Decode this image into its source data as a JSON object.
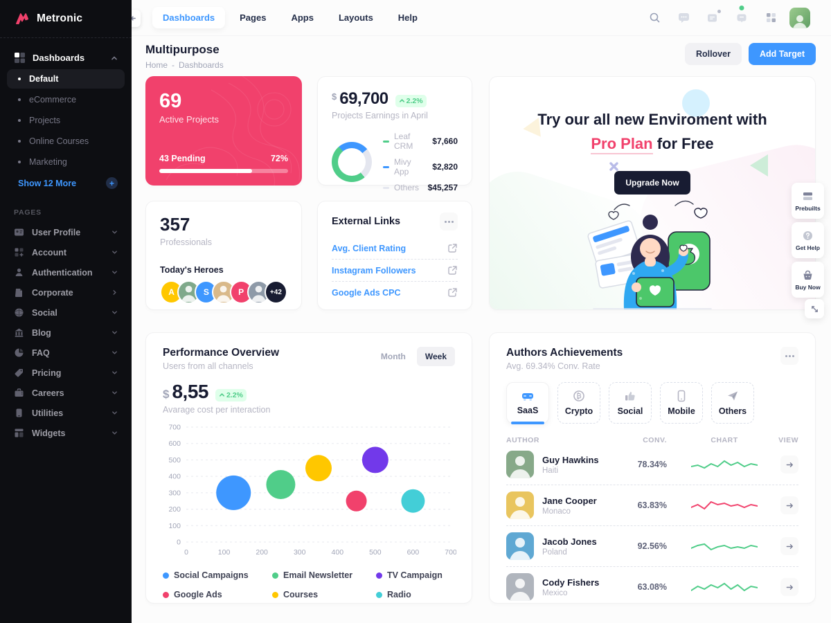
{
  "brand": {
    "name": "Metronic"
  },
  "colors": {
    "primary": "#3E97FF",
    "danger": "#F1416C",
    "success": "#50CD89",
    "warning": "#FFC700",
    "purple": "#7239EA",
    "teal": "#43CED7",
    "dark": "#181C32"
  },
  "topnav": {
    "tabs": [
      {
        "label": "Dashboards"
      },
      {
        "label": "Pages"
      },
      {
        "label": "Apps"
      },
      {
        "label": "Layouts"
      },
      {
        "label": "Help"
      }
    ]
  },
  "sidebar": {
    "dashboards_label": "Dashboards",
    "dashboard_items": [
      {
        "label": "Default"
      },
      {
        "label": "eCommerce"
      },
      {
        "label": "Projects"
      },
      {
        "label": "Online Courses"
      },
      {
        "label": "Marketing"
      }
    ],
    "show_more": "Show 12 More",
    "pages_heading": "PAGES",
    "pages": [
      {
        "label": "User Profile"
      },
      {
        "label": "Account"
      },
      {
        "label": "Authentication"
      },
      {
        "label": "Corporate"
      },
      {
        "label": "Social"
      },
      {
        "label": "Blog"
      },
      {
        "label": "FAQ"
      },
      {
        "label": "Pricing"
      },
      {
        "label": "Careers"
      },
      {
        "label": "Utilities"
      },
      {
        "label": "Widgets"
      }
    ]
  },
  "toolbar": {
    "title": "Multipurpose",
    "breadcrumb_home": "Home",
    "breadcrumb_sep": "-",
    "breadcrumb_current": "Dashboards",
    "rollover_label": "Rollover",
    "add_target_label": "Add Target"
  },
  "cards": {
    "active_projects": {
      "value": "69",
      "label": "Active Projects",
      "pending": "43 Pending",
      "percent_label": "72%",
      "progress": 72
    },
    "earnings": {
      "currency": "$",
      "value": "69,700",
      "delta": "2.2%",
      "subtitle": "Projects Earnings in April",
      "rows": [
        {
          "label": "Leaf CRM",
          "value": "$7,660",
          "color": "#50CD89"
        },
        {
          "label": "Mivy App",
          "value": "$2,820",
          "color": "#3E97FF"
        },
        {
          "label": "Others",
          "value": "$45,257",
          "color": "#E4E6EF"
        }
      ]
    },
    "banner": {
      "title_line1": "Try our all new Enviroment with",
      "highlight": "Pro Plan",
      "title_tail": " for Free",
      "button": "Upgrade Now"
    },
    "professionals": {
      "value": "357",
      "label": "Professionals",
      "heroes_label": "Today's Heroes",
      "avatars": [
        {
          "initial": "A",
          "bg": "#FFC700"
        },
        {
          "initial": "",
          "bg": "#7FA98B"
        },
        {
          "initial": "S",
          "bg": "#3E97FF"
        },
        {
          "initial": "",
          "bg": "#D9B98A"
        },
        {
          "initial": "P",
          "bg": "#F1416C"
        },
        {
          "initial": "",
          "bg": "#8E9AA8"
        },
        {
          "initial": "+42",
          "bg": "#181C32"
        }
      ]
    },
    "external_links": {
      "title": "External Links",
      "links": [
        {
          "label": "Avg. Client Rating"
        },
        {
          "label": "Instagram Followers"
        },
        {
          "label": "Google Ads CPC"
        }
      ]
    },
    "performance": {
      "title": "Performance Overview",
      "subtitle": "Users from all channels",
      "toggle": [
        {
          "label": "Month"
        },
        {
          "label": "Week",
          "active": true
        }
      ],
      "currency": "$",
      "value": "8,55",
      "delta": "2.2%",
      "caption": "Avarage cost per interaction"
    },
    "authors": {
      "title": "Authors Achievements",
      "subtitle": "Avg. 69.34% Conv. Rate",
      "tabs": [
        {
          "label": "SaaS",
          "active": true
        },
        {
          "label": "Crypto"
        },
        {
          "label": "Social"
        },
        {
          "label": "Mobile"
        },
        {
          "label": "Others"
        }
      ],
      "columns": [
        "AUTHOR",
        "CONV.",
        "CHART",
        "VIEW"
      ],
      "rows": [
        {
          "name": "Guy Hawkins",
          "country": "Haiti",
          "conv": "78.34%",
          "avatar_bg": "#87A989",
          "spark_color": "#50CD89",
          "spark": [
            4,
            5,
            3,
            6,
            4,
            8,
            5,
            7,
            4,
            6,
            5
          ]
        },
        {
          "name": "Jane Cooper",
          "country": "Monaco",
          "conv": "63.83%",
          "avatar_bg": "#E9C55E",
          "spark_color": "#F1416C",
          "spark": [
            4,
            6,
            3,
            8,
            6,
            7,
            5,
            6,
            4,
            6,
            5
          ]
        },
        {
          "name": "Jacob Jones",
          "country": "Poland",
          "conv": "92.56%",
          "avatar_bg": "#5FA8D3",
          "spark_color": "#50CD89",
          "spark": [
            4,
            6,
            7,
            3,
            5,
            6,
            4,
            5,
            4,
            6,
            5
          ]
        },
        {
          "name": "Cody Fishers",
          "country": "Mexico",
          "conv": "63.08%",
          "avatar_bg": "#B0B5BD",
          "spark_color": "#50CD89",
          "spark": [
            3,
            6,
            4,
            7,
            5,
            8,
            4,
            7,
            3,
            6,
            5
          ]
        }
      ]
    }
  },
  "side_actions": {
    "prebuilts": "Prebuilts",
    "get_help": "Get Help",
    "buy_now": "Buy Now"
  },
  "chart_data": {
    "type": "scatter",
    "title": "Performance Overview",
    "subtitle": "Users from all channels",
    "xlabel": "",
    "ylabel": "",
    "xlim": [
      0,
      700
    ],
    "ylim": [
      0,
      700
    ],
    "xticks": [
      0,
      100,
      200,
      300,
      400,
      500,
      600,
      700
    ],
    "yticks": [
      0,
      100,
      200,
      300,
      400,
      500,
      600,
      700
    ],
    "grid": "dashed-horizontal",
    "legend_position": "bottom",
    "series": [
      {
        "name": "Social Campaigns",
        "color": "#3E97FF",
        "points": [
          {
            "x": 125,
            "y": 300,
            "r": 25
          }
        ]
      },
      {
        "name": "Email Newsletter",
        "color": "#50CD89",
        "points": [
          {
            "x": 250,
            "y": 350,
            "r": 21
          }
        ]
      },
      {
        "name": "TV Campaign",
        "color": "#7239EA",
        "points": [
          {
            "x": 500,
            "y": 500,
            "r": 19
          }
        ]
      },
      {
        "name": "Google Ads",
        "color": "#F1416C",
        "points": [
          {
            "x": 450,
            "y": 250,
            "r": 15
          }
        ]
      },
      {
        "name": "Courses",
        "color": "#FFC700",
        "points": [
          {
            "x": 350,
            "y": 450,
            "r": 19
          }
        ]
      },
      {
        "name": "Radio",
        "color": "#43CED7",
        "points": [
          {
            "x": 600,
            "y": 250,
            "r": 17
          }
        ]
      }
    ]
  }
}
